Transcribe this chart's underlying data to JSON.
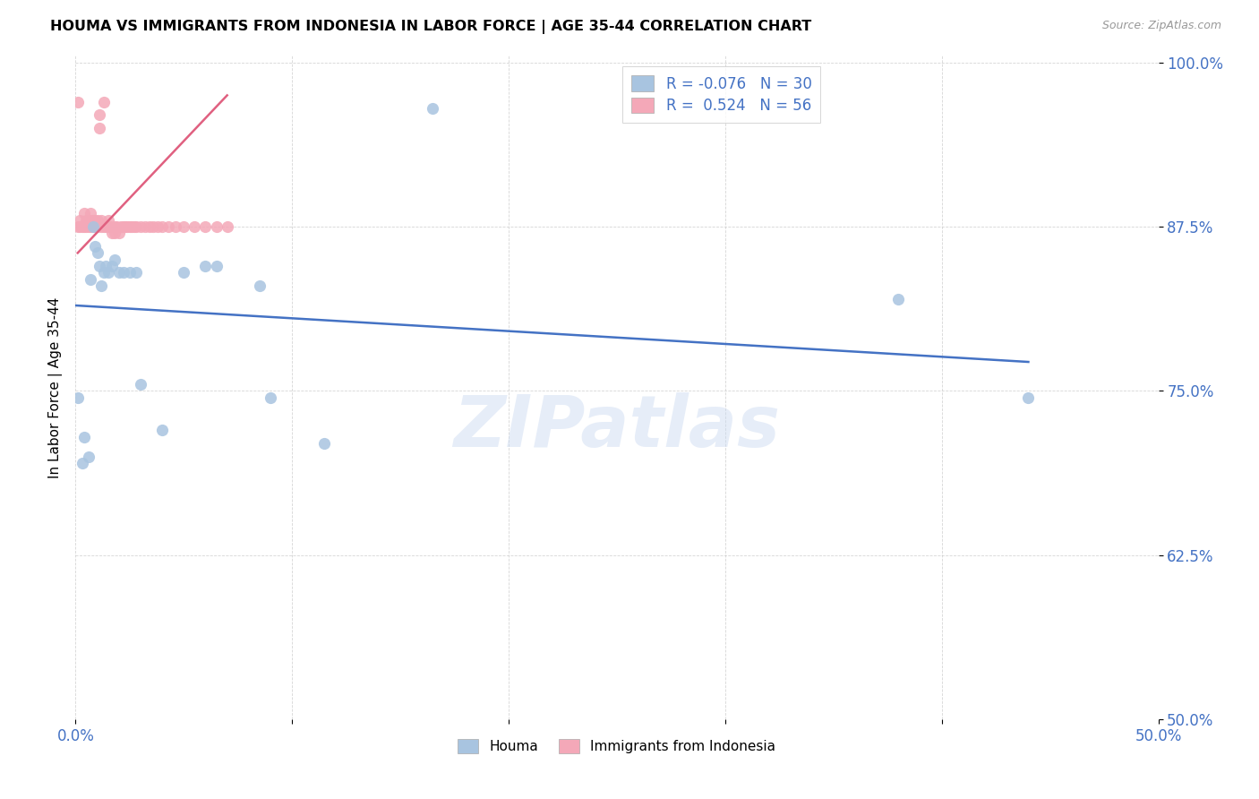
{
  "title": "HOUMA VS IMMIGRANTS FROM INDONESIA IN LABOR FORCE | AGE 35-44 CORRELATION CHART",
  "source": "Source: ZipAtlas.com",
  "ylabel": "In Labor Force | Age 35-44",
  "xlim": [
    0.0,
    0.5
  ],
  "ylim": [
    0.5,
    1.005
  ],
  "xticks": [
    0.0,
    0.1,
    0.2,
    0.3,
    0.4,
    0.5
  ],
  "xtick_labels": [
    "0.0%",
    "",
    "",
    "",
    "",
    "50.0%"
  ],
  "yticks": [
    0.5,
    0.625,
    0.75,
    0.875,
    1.0
  ],
  "ytick_labels": [
    "50.0%",
    "62.5%",
    "75.0%",
    "87.5%",
    "100.0%"
  ],
  "watermark": "ZIPatlas",
  "legend_R_houma": "-0.076",
  "legend_N_houma": "30",
  "legend_R_indonesia": "0.524",
  "legend_N_indonesia": "56",
  "houma_color": "#a8c4e0",
  "indonesia_color": "#f4a8b8",
  "houma_line_color": "#4472c4",
  "indonesia_line_color": "#e06080",
  "houma_x": [
    0.001,
    0.003,
    0.004,
    0.006,
    0.007,
    0.008,
    0.009,
    0.01,
    0.011,
    0.012,
    0.013,
    0.014,
    0.015,
    0.017,
    0.018,
    0.02,
    0.022,
    0.025,
    0.028,
    0.03,
    0.04,
    0.05,
    0.06,
    0.065,
    0.085,
    0.09,
    0.115,
    0.165,
    0.38,
    0.44
  ],
  "houma_y": [
    0.745,
    0.695,
    0.715,
    0.7,
    0.835,
    0.875,
    0.86,
    0.855,
    0.845,
    0.83,
    0.84,
    0.845,
    0.84,
    0.845,
    0.85,
    0.84,
    0.84,
    0.84,
    0.84,
    0.755,
    0.72,
    0.84,
    0.845,
    0.845,
    0.83,
    0.745,
    0.71,
    0.965,
    0.82,
    0.745
  ],
  "indonesia_x": [
    0.001,
    0.001,
    0.002,
    0.002,
    0.003,
    0.004,
    0.004,
    0.005,
    0.005,
    0.006,
    0.006,
    0.007,
    0.007,
    0.007,
    0.008,
    0.008,
    0.009,
    0.009,
    0.01,
    0.01,
    0.011,
    0.011,
    0.012,
    0.012,
    0.013,
    0.013,
    0.014,
    0.015,
    0.015,
    0.016,
    0.017,
    0.018,
    0.018,
    0.019,
    0.02,
    0.021,
    0.022,
    0.023,
    0.024,
    0.025,
    0.026,
    0.027,
    0.028,
    0.03,
    0.032,
    0.034,
    0.036,
    0.038,
    0.04,
    0.043,
    0.046,
    0.05,
    0.055,
    0.06,
    0.065,
    0.07
  ],
  "indonesia_y": [
    0.875,
    0.97,
    0.875,
    0.88,
    0.875,
    0.875,
    0.885,
    0.875,
    0.88,
    0.875,
    0.88,
    0.875,
    0.88,
    0.885,
    0.875,
    0.88,
    0.875,
    0.88,
    0.875,
    0.88,
    0.95,
    0.96,
    0.875,
    0.88,
    0.875,
    0.97,
    0.875,
    0.875,
    0.88,
    0.875,
    0.87,
    0.875,
    0.87,
    0.875,
    0.87,
    0.875,
    0.875,
    0.875,
    0.875,
    0.875,
    0.875,
    0.875,
    0.875,
    0.875,
    0.875,
    0.875,
    0.875,
    0.875,
    0.875,
    0.875,
    0.875,
    0.875,
    0.875,
    0.875,
    0.875,
    0.875
  ],
  "houma_line_x": [
    0.0,
    0.44
  ],
  "houma_line_y": [
    0.815,
    0.772
  ],
  "indonesia_line_x": [
    0.001,
    0.07
  ],
  "indonesia_line_y": [
    0.855,
    0.975
  ]
}
